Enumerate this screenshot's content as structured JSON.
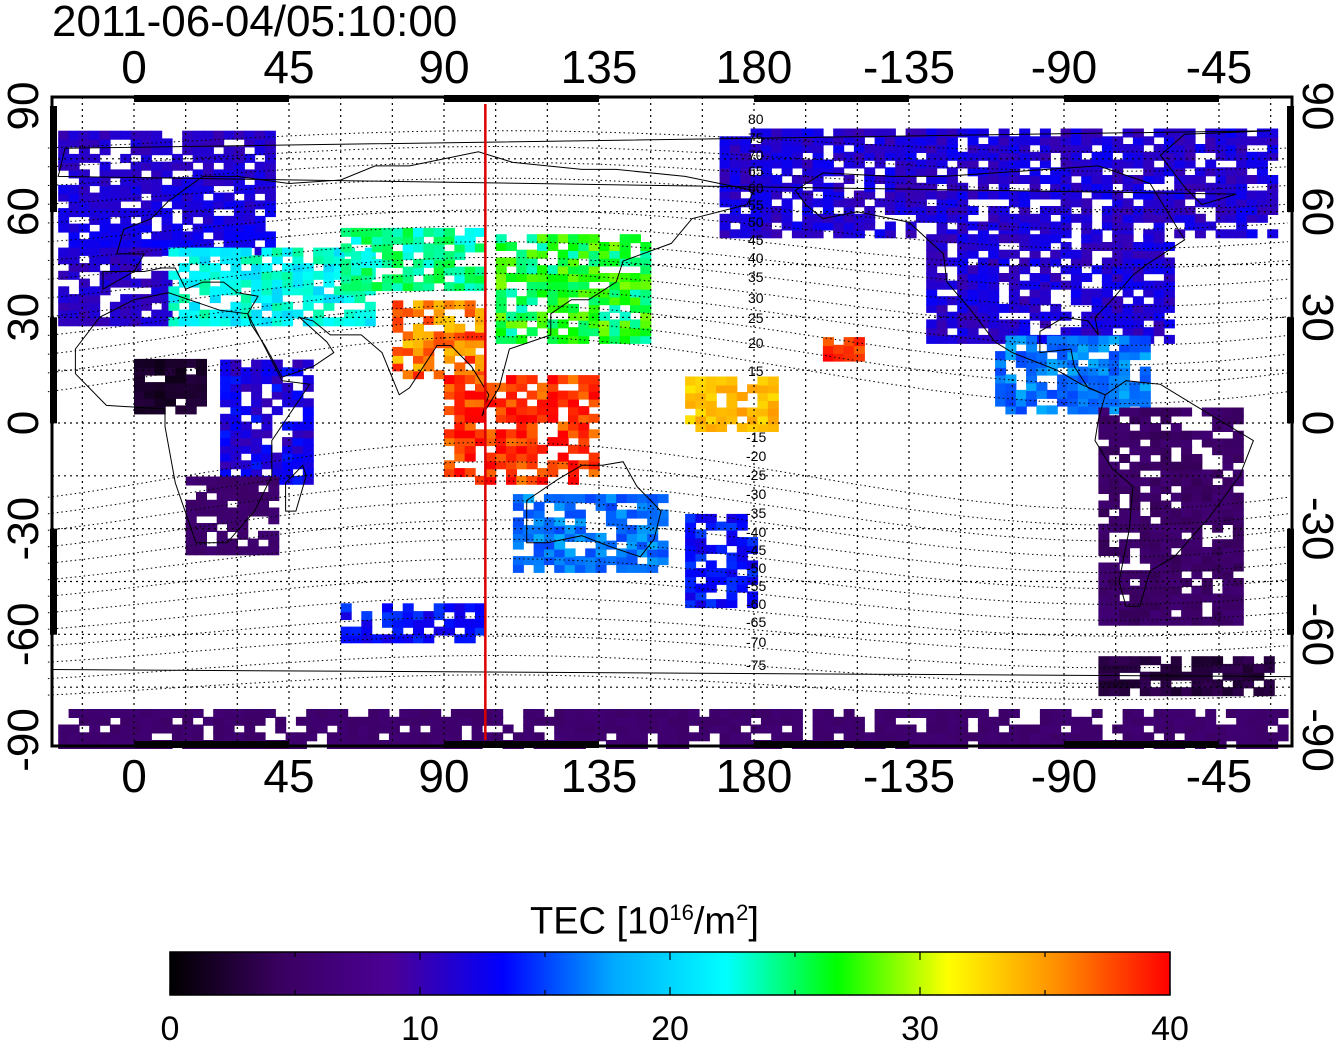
{
  "title": "2011-06-04/05:10:00",
  "top_lon_labels": [
    "0",
    "45",
    "90",
    "135",
    "180",
    "-135",
    "-90",
    "-45"
  ],
  "bottom_lon_labels": [
    "0",
    "45",
    "90",
    "135",
    "180",
    "-135",
    "-90",
    "-45"
  ],
  "lat_labels_left": [
    "90",
    "60",
    "30",
    "0",
    "-30",
    "-60",
    "-90"
  ],
  "lat_labels_right": [
    "90",
    "60",
    "30",
    "0",
    "-30",
    "-60",
    "-90"
  ],
  "mag_lat_labels_north": [
    "80",
    "75",
    "70",
    "65",
    "60",
    "55",
    "50",
    "45",
    "40",
    "35",
    "30",
    "25",
    "20",
    "15"
  ],
  "mag_lat_labels_south": [
    "-15",
    "-20",
    "-25",
    "-30",
    "-35",
    "-40",
    "-45",
    "-50",
    "-55",
    "-60",
    "-65",
    "-70",
    "-75"
  ],
  "colorbar": {
    "title_prefix": "TEC  [10",
    "title_sup1": "16",
    "title_mid": "/m",
    "title_sup2": "2",
    "title_suffix": "]",
    "min": 0,
    "max": 40,
    "tick_labels": [
      "0",
      "10",
      "20",
      "30",
      "40"
    ]
  },
  "marker_line": {
    "longitude": 102,
    "color": "#dd0000"
  },
  "colors": {
    "colormap": [
      "#000000",
      "#3a0060",
      "#4b0096",
      "#0000ff",
      "#00aaff",
      "#00ffff",
      "#00ff00",
      "#ffff00",
      "#ff8c00",
      "#ff0000"
    ]
  }
}
